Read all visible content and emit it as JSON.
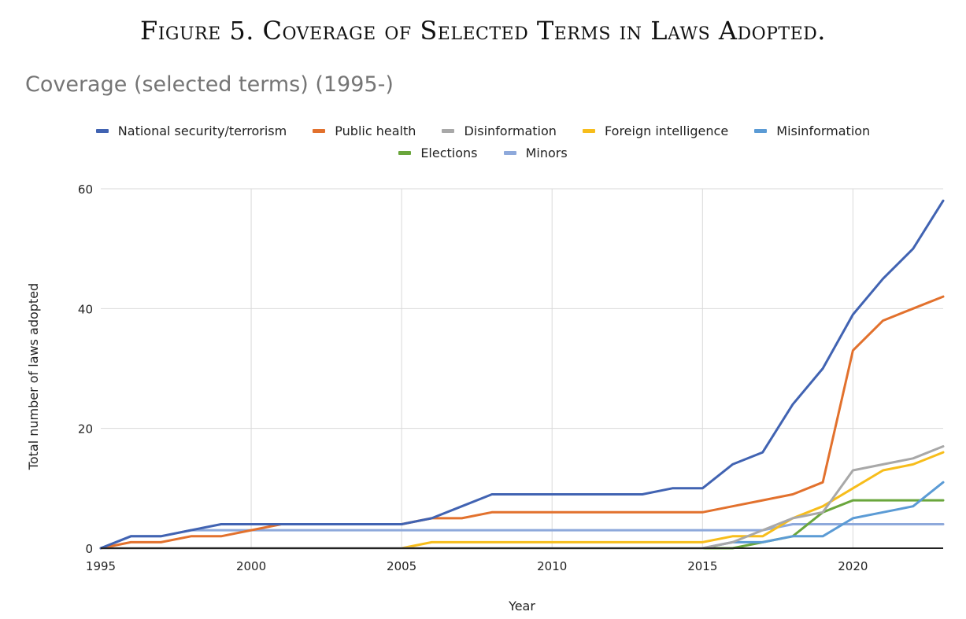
{
  "figure_title": "Figure 5. Coverage of Selected Terms in Laws Adopted.",
  "chart_data": {
    "type": "line",
    "title": "Coverage (selected terms) (1995-)",
    "xlabel": "Year",
    "ylabel": "Total number of laws adopted",
    "xlim": [
      1995,
      2023
    ],
    "ylim": [
      0,
      60
    ],
    "x_ticks": [
      1995,
      2000,
      2005,
      2010,
      2015,
      2020
    ],
    "y_ticks": [
      0,
      20,
      40,
      60
    ],
    "grid": true,
    "legend_position": "top",
    "x": [
      1995,
      1996,
      1997,
      1998,
      1999,
      2000,
      2001,
      2002,
      2003,
      2004,
      2005,
      2006,
      2007,
      2008,
      2009,
      2010,
      2011,
      2012,
      2013,
      2014,
      2015,
      2016,
      2017,
      2018,
      2019,
      2020,
      2021,
      2022,
      2023
    ],
    "series": [
      {
        "name": "National security/terrorism",
        "color": "#4163b2",
        "values": [
          0,
          2,
          2,
          3,
          4,
          4,
          4,
          4,
          4,
          4,
          4,
          5,
          7,
          9,
          9,
          9,
          9,
          9,
          9,
          10,
          10,
          14,
          16,
          24,
          30,
          39,
          45,
          50,
          58
        ]
      },
      {
        "name": "Public health",
        "color": "#e2712d",
        "values": [
          0,
          1,
          1,
          2,
          2,
          3,
          4,
          4,
          4,
          4,
          4,
          5,
          5,
          6,
          6,
          6,
          6,
          6,
          6,
          6,
          6,
          7,
          8,
          9,
          11,
          33,
          38,
          40,
          42
        ]
      },
      {
        "name": "Disinformation",
        "color": "#a8a8a8",
        "values": [
          0,
          0,
          0,
          0,
          0,
          0,
          0,
          0,
          0,
          0,
          0,
          0,
          0,
          0,
          0,
          0,
          0,
          0,
          0,
          0,
          0,
          1,
          3,
          5,
          6,
          13,
          14,
          15,
          17
        ]
      },
      {
        "name": "Foreign intelligence",
        "color": "#f7bd1b",
        "values": [
          0,
          0,
          0,
          0,
          0,
          0,
          0,
          0,
          0,
          0,
          0,
          1,
          1,
          1,
          1,
          1,
          1,
          1,
          1,
          1,
          1,
          2,
          2,
          5,
          7,
          10,
          13,
          14,
          16
        ]
      },
      {
        "name": "Misinformation",
        "color": "#5b9bd5",
        "values": [
          0,
          0,
          0,
          0,
          0,
          0,
          0,
          0,
          0,
          0,
          0,
          0,
          0,
          0,
          0,
          0,
          0,
          0,
          0,
          0,
          0,
          1,
          1,
          2,
          2,
          5,
          6,
          7,
          11
        ]
      },
      {
        "name": "Elections",
        "color": "#6aa63c",
        "values": [
          0,
          0,
          0,
          0,
          0,
          0,
          0,
          0,
          0,
          0,
          0,
          0,
          0,
          0,
          0,
          0,
          0,
          0,
          0,
          0,
          0,
          0,
          1,
          2,
          6,
          8,
          8,
          8,
          8
        ]
      },
      {
        "name": "Minors",
        "color": "#8ea9db",
        "values": [
          0,
          2,
          2,
          3,
          3,
          3,
          3,
          3,
          3,
          3,
          3,
          3,
          3,
          3,
          3,
          3,
          3,
          3,
          3,
          3,
          3,
          3,
          3,
          4,
          4,
          4,
          4,
          4,
          4
        ]
      }
    ]
  }
}
